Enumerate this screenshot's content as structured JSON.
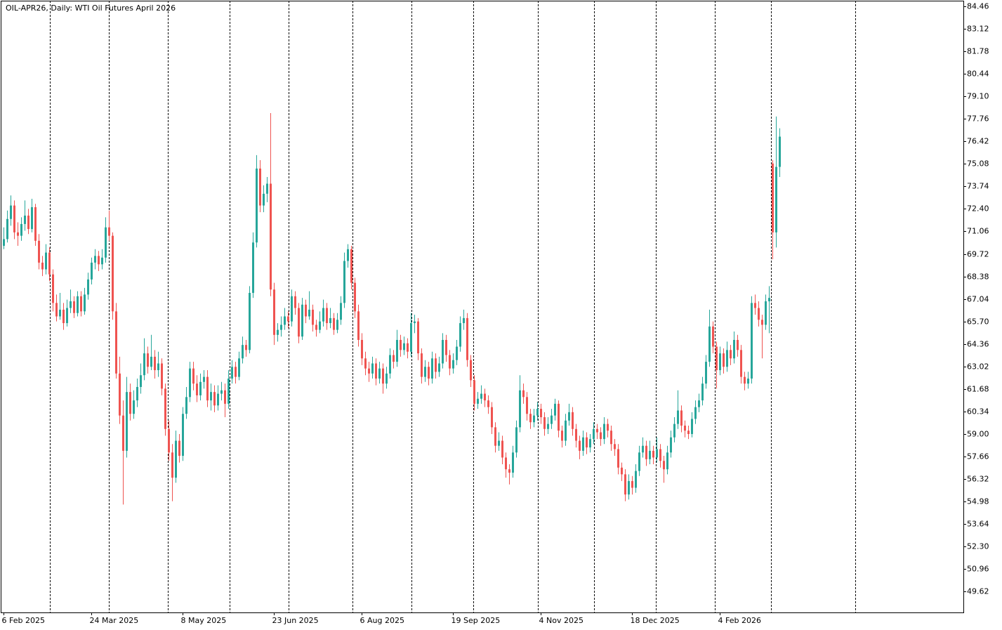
{
  "chart_data": {
    "type": "candlestick",
    "title": "OIL-APR26, Daily:  WTI Oil Futures April 2026",
    "up_color": "#26a69a",
    "down_color": "#ef5350",
    "ylim": [
      48.38,
      84.79
    ],
    "yticks": [
      84.46,
      83.12,
      81.78,
      80.44,
      {
        "value": 79.1,
        "label": "79.10"
      },
      77.76,
      76.42,
      75.08,
      73.74,
      {
        "value": 72.4,
        "label": "72.40"
      },
      71.06,
      69.72,
      68.38,
      67.04,
      {
        "value": 65.7,
        "label": "65.70"
      },
      64.36,
      63.02,
      61.68,
      60.34,
      {
        "value": 59,
        "label": "59.00"
      },
      57.66,
      56.32,
      54.98,
      53.64,
      {
        "value": 52.3,
        "label": "52.30"
      },
      50.96,
      49.62
    ],
    "xlim": [
      -0.8,
      273.4
    ],
    "xticks": [
      {
        "value": 0,
        "label": "6 Feb 2025"
      },
      {
        "value": 25,
        "label": "24 Mar 2025"
      },
      {
        "value": 51,
        "label": "8 May 2025"
      },
      {
        "value": 77,
        "label": "23 Jun 2025"
      },
      {
        "value": 102,
        "label": "6 Aug 2025"
      },
      {
        "value": 128,
        "label": "19 Sep 2025"
      },
      {
        "value": 153,
        "label": "4 Nov 2025"
      },
      {
        "value": 179,
        "label": "18 Dec 2025"
      },
      {
        "value": 204,
        "label": "4 Feb 2026"
      }
    ],
    "xgrid": [
      13.2,
      30,
      46.8,
      64.4,
      81.2,
      99.4,
      116.2,
      133.8,
      152.2,
      168.2,
      185.8,
      202.6,
      218.6,
      242.6
    ],
    "ohlc": [
      [
        70.2,
        71.3,
        70.0,
        70.6
      ],
      [
        70.6,
        72.3,
        70.4,
        71.8
      ],
      [
        71.8,
        73.2,
        71.4,
        72.6
      ],
      [
        72.6,
        72.9,
        70.6,
        71.0
      ],
      [
        71.0,
        71.6,
        70.2,
        70.8
      ],
      [
        70.8,
        71.9,
        70.5,
        71.5
      ],
      [
        71.5,
        72.9,
        71.1,
        72.0
      ],
      [
        72.0,
        72.4,
        70.9,
        71.2
      ],
      [
        71.2,
        73.0,
        71.0,
        72.5
      ],
      [
        72.5,
        72.7,
        70.2,
        70.5
      ],
      [
        70.5,
        70.9,
        68.8,
        69.2
      ],
      [
        69.2,
        69.6,
        68.4,
        68.8
      ],
      [
        68.8,
        70.3,
        68.5,
        69.8
      ],
      [
        69.8,
        70.1,
        68.1,
        68.5
      ],
      [
        68.5,
        68.8,
        66.3,
        66.8
      ],
      [
        66.8,
        67.3,
        65.7,
        66.0
      ],
      [
        66.0,
        67.4,
        65.8,
        66.4
      ],
      [
        66.4,
        66.8,
        65.2,
        65.6
      ],
      [
        65.6,
        67.0,
        65.4,
        66.5
      ],
      [
        66.5,
        67.6,
        66.2,
        66.9
      ],
      [
        66.9,
        67.2,
        65.9,
        66.2
      ],
      [
        66.2,
        67.5,
        66.0,
        67.2
      ],
      [
        67.2,
        67.5,
        66.0,
        66.3
      ],
      [
        66.3,
        67.7,
        66.1,
        67.3
      ],
      [
        67.3,
        68.6,
        67.0,
        68.2
      ],
      [
        68.2,
        69.5,
        67.9,
        69.2
      ],
      [
        69.2,
        70.0,
        68.8,
        69.6
      ],
      [
        69.6,
        69.9,
        68.7,
        69.1
      ],
      [
        69.1,
        70.0,
        68.8,
        69.5
      ],
      [
        69.5,
        71.9,
        69.2,
        71.3
      ],
      [
        71.3,
        72.3,
        70.5,
        70.8
      ],
      [
        70.8,
        71.0,
        65.8,
        66.3
      ],
      [
        66.3,
        66.8,
        62.3,
        62.6
      ],
      [
        62.6,
        63.6,
        59.6,
        60.1
      ],
      [
        60.1,
        61.0,
        54.8,
        58.0
      ],
      [
        58.0,
        62.4,
        57.6,
        61.5
      ],
      [
        61.5,
        62.0,
        59.8,
        60.2
      ],
      [
        60.2,
        61.6,
        59.9,
        61.0
      ],
      [
        61.0,
        62.3,
        60.6,
        61.8
      ],
      [
        61.8,
        63.2,
        61.4,
        62.5
      ],
      [
        62.5,
        64.7,
        62.2,
        63.8
      ],
      [
        63.8,
        64.2,
        62.6,
        63.0
      ],
      [
        63.0,
        64.9,
        62.8,
        63.6
      ],
      [
        63.6,
        64.0,
        62.3,
        62.8
      ],
      [
        62.8,
        63.9,
        62.4,
        63.2
      ],
      [
        63.2,
        63.5,
        61.3,
        61.7
      ],
      [
        61.7,
        62.0,
        58.9,
        59.3
      ],
      [
        59.3,
        59.8,
        57.4,
        57.9
      ],
      [
        57.9,
        58.4,
        55.0,
        56.4
      ],
      [
        56.4,
        59.2,
        56.1,
        58.6
      ],
      [
        58.6,
        59.0,
        57.3,
        57.7
      ],
      [
        57.7,
        60.6,
        57.4,
        60.2
      ],
      [
        60.2,
        61.8,
        59.9,
        61.2
      ],
      [
        61.2,
        63.3,
        60.9,
        62.9
      ],
      [
        62.9,
        63.3,
        61.6,
        62.0
      ],
      [
        62.0,
        62.5,
        60.9,
        61.3
      ],
      [
        61.3,
        62.6,
        61.0,
        62.1
      ],
      [
        62.1,
        62.8,
        61.7,
        62.4
      ],
      [
        62.4,
        62.8,
        60.6,
        61.0
      ],
      [
        61.0,
        62.0,
        60.4,
        61.5
      ],
      [
        61.5,
        61.9,
        60.3,
        60.7
      ],
      [
        60.7,
        61.9,
        60.4,
        61.4
      ],
      [
        61.4,
        62.1,
        61.0,
        61.6
      ],
      [
        61.6,
        62.0,
        60.0,
        60.8
      ],
      [
        60.8,
        62.8,
        60.5,
        62.3
      ],
      [
        62.3,
        63.4,
        62.0,
        63.0
      ],
      [
        63.0,
        63.3,
        62.0,
        62.4
      ],
      [
        62.4,
        63.9,
        62.2,
        63.5
      ],
      [
        63.5,
        64.8,
        63.2,
        64.3
      ],
      [
        64.3,
        64.6,
        63.6,
        64.0
      ],
      [
        64.0,
        67.8,
        63.8,
        67.4
      ],
      [
        67.4,
        71.0,
        67.1,
        70.4
      ],
      [
        70.4,
        75.6,
        70.1,
        74.8
      ],
      [
        74.8,
        75.3,
        72.2,
        72.6
      ],
      [
        72.6,
        73.8,
        72.2,
        73.3
      ],
      [
        73.3,
        74.3,
        72.8,
        73.9
      ],
      [
        73.9,
        78.1,
        67.2,
        67.6
      ],
      [
        67.6,
        68.0,
        64.3,
        64.9
      ],
      [
        64.9,
        65.6,
        64.5,
        65.2
      ],
      [
        65.2,
        66.0,
        64.8,
        65.5
      ],
      [
        65.5,
        66.5,
        65.2,
        66.0
      ],
      [
        66.0,
        66.3,
        65.3,
        65.7
      ],
      [
        65.7,
        67.6,
        65.4,
        67.2
      ],
      [
        67.2,
        67.5,
        66.1,
        66.5
      ],
      [
        66.5,
        66.8,
        64.4,
        64.8
      ],
      [
        64.8,
        67.1,
        64.6,
        66.7
      ],
      [
        66.7,
        67.0,
        65.6,
        66.0
      ],
      [
        66.0,
        67.5,
        65.8,
        66.4
      ],
      [
        66.4,
        66.7,
        65.1,
        65.5
      ],
      [
        65.5,
        65.8,
        64.8,
        65.2
      ],
      [
        65.2,
        66.3,
        65.0,
        65.7
      ],
      [
        65.7,
        67.0,
        65.4,
        66.5
      ],
      [
        66.5,
        66.8,
        65.2,
        65.6
      ],
      [
        65.6,
        66.5,
        65.3,
        65.9
      ],
      [
        65.9,
        66.2,
        64.9,
        65.2
      ],
      [
        65.2,
        66.2,
        65.0,
        65.8
      ],
      [
        65.8,
        67.2,
        65.5,
        66.8
      ],
      [
        66.8,
        69.8,
        66.5,
        69.3
      ],
      [
        69.3,
        70.3,
        68.9,
        70.0
      ],
      [
        70.0,
        70.2,
        67.6,
        68.0
      ],
      [
        68.0,
        68.3,
        65.9,
        66.3
      ],
      [
        66.3,
        66.7,
        64.2,
        64.6
      ],
      [
        64.6,
        65.0,
        63.1,
        63.5
      ],
      [
        63.5,
        63.9,
        62.5,
        62.9
      ],
      [
        62.9,
        63.3,
        62.1,
        62.6
      ],
      [
        62.6,
        63.6,
        62.3,
        63.2
      ],
      [
        63.2,
        63.5,
        61.9,
        62.3
      ],
      [
        62.3,
        63.3,
        62.0,
        62.9
      ],
      [
        62.9,
        63.2,
        61.4,
        62.0
      ],
      [
        62.0,
        63.0,
        61.7,
        62.6
      ],
      [
        62.6,
        64.1,
        62.3,
        63.7
      ],
      [
        63.7,
        64.0,
        62.9,
        63.3
      ],
      [
        63.3,
        65.2,
        63.0,
        64.6
      ],
      [
        64.6,
        64.9,
        63.6,
        64.0
      ],
      [
        64.0,
        64.8,
        63.7,
        64.4
      ],
      [
        64.4,
        64.7,
        63.5,
        63.9
      ],
      [
        63.9,
        66.2,
        63.6,
        65.6
      ],
      [
        65.6,
        66.1,
        65.0,
        65.7
      ],
      [
        65.7,
        65.9,
        63.4,
        63.8
      ],
      [
        63.8,
        64.1,
        62.0,
        62.4
      ],
      [
        62.4,
        63.4,
        62.1,
        63.0
      ],
      [
        63.0,
        63.3,
        61.9,
        62.3
      ],
      [
        62.3,
        63.9,
        62.0,
        63.5
      ],
      [
        63.5,
        63.8,
        62.3,
        62.7
      ],
      [
        62.7,
        63.6,
        62.4,
        63.2
      ],
      [
        63.2,
        65.0,
        62.9,
        64.6
      ],
      [
        64.6,
        64.9,
        63.3,
        63.7
      ],
      [
        63.7,
        64.0,
        62.5,
        62.9
      ],
      [
        62.9,
        63.8,
        62.6,
        63.4
      ],
      [
        63.4,
        64.6,
        63.1,
        64.2
      ],
      [
        64.2,
        66.0,
        63.9,
        65.6
      ],
      [
        65.6,
        66.4,
        65.2,
        65.9
      ],
      [
        65.9,
        66.2,
        63.0,
        63.4
      ],
      [
        63.4,
        63.7,
        61.8,
        62.2
      ],
      [
        62.2,
        62.5,
        60.4,
        60.8
      ],
      [
        60.8,
        61.5,
        60.5,
        61.1
      ],
      [
        61.1,
        61.9,
        60.8,
        61.4
      ],
      [
        61.4,
        61.7,
        60.6,
        61.0
      ],
      [
        61.0,
        61.3,
        60.2,
        60.6
      ],
      [
        60.6,
        60.9,
        59.0,
        59.4
      ],
      [
        59.4,
        59.7,
        57.9,
        58.3
      ],
      [
        58.3,
        59.1,
        58.0,
        58.6
      ],
      [
        58.6,
        58.9,
        57.2,
        57.6
      ],
      [
        57.6,
        57.9,
        56.4,
        56.9
      ],
      [
        56.9,
        57.2,
        56.0,
        56.7
      ],
      [
        56.7,
        58.3,
        56.4,
        57.9
      ],
      [
        57.9,
        59.8,
        57.6,
        59.4
      ],
      [
        59.4,
        62.5,
        59.1,
        61.6
      ],
      [
        61.6,
        62.0,
        60.8,
        61.2
      ],
      [
        61.2,
        61.5,
        59.8,
        60.2
      ],
      [
        60.2,
        60.5,
        59.3,
        59.7
      ],
      [
        59.7,
        60.5,
        59.4,
        60.1
      ],
      [
        60.1,
        60.9,
        59.8,
        60.5
      ],
      [
        60.5,
        60.8,
        59.6,
        60.0
      ],
      [
        60.0,
        60.3,
        58.9,
        59.3
      ],
      [
        59.3,
        60.0,
        59.0,
        59.6
      ],
      [
        59.6,
        60.5,
        59.3,
        60.1
      ],
      [
        60.1,
        61.1,
        59.8,
        60.8
      ],
      [
        60.8,
        61.0,
        58.8,
        59.2
      ],
      [
        59.2,
        59.5,
        58.2,
        58.6
      ],
      [
        58.6,
        60.2,
        58.3,
        59.8
      ],
      [
        59.8,
        60.8,
        59.5,
        60.3
      ],
      [
        60.3,
        60.6,
        58.9,
        59.3
      ],
      [
        59.3,
        59.6,
        58.2,
        58.6
      ],
      [
        58.6,
        58.9,
        57.5,
        58.0
      ],
      [
        58.0,
        59.2,
        57.7,
        58.8
      ],
      [
        58.8,
        59.1,
        57.8,
        58.2
      ],
      [
        58.2,
        59.0,
        57.9,
        58.7
      ],
      [
        58.7,
        59.7,
        58.4,
        59.3
      ],
      [
        59.3,
        59.6,
        58.7,
        59.1
      ],
      [
        59.1,
        59.4,
        58.3,
        58.7
      ],
      [
        58.7,
        60.0,
        58.4,
        59.6
      ],
      [
        59.6,
        59.9,
        58.8,
        59.2
      ],
      [
        59.2,
        59.5,
        58.0,
        58.4
      ],
      [
        58.4,
        58.7,
        57.7,
        58.1
      ],
      [
        58.1,
        58.4,
        56.6,
        57.0
      ],
      [
        57.0,
        57.3,
        56.2,
        56.6
      ],
      [
        56.6,
        56.9,
        55.0,
        55.4
      ],
      [
        55.4,
        56.6,
        55.1,
        56.2
      ],
      [
        56.2,
        56.5,
        55.4,
        55.8
      ],
      [
        55.8,
        57.2,
        55.5,
        56.8
      ],
      [
        56.8,
        58.3,
        56.5,
        57.9
      ],
      [
        57.9,
        58.8,
        57.6,
        58.3
      ],
      [
        58.3,
        58.6,
        57.1,
        57.5
      ],
      [
        57.5,
        58.6,
        57.2,
        58.0
      ],
      [
        58.0,
        58.3,
        57.2,
        57.6
      ],
      [
        57.6,
        58.8,
        57.3,
        58.1
      ],
      [
        58.1,
        58.4,
        57.0,
        57.4
      ],
      [
        57.4,
        57.7,
        56.1,
        56.9
      ],
      [
        56.9,
        58.3,
        56.6,
        57.9
      ],
      [
        57.9,
        59.2,
        57.6,
        58.8
      ],
      [
        58.8,
        60.0,
        58.5,
        59.6
      ],
      [
        59.6,
        61.6,
        59.3,
        60.4
      ],
      [
        60.4,
        60.7,
        59.1,
        59.5
      ],
      [
        59.5,
        59.8,
        58.8,
        59.2
      ],
      [
        59.2,
        59.5,
        58.7,
        59.0
      ],
      [
        59.0,
        60.3,
        58.8,
        59.9
      ],
      [
        59.9,
        61.0,
        59.6,
        60.6
      ],
      [
        60.6,
        61.4,
        60.3,
        61.0
      ],
      [
        61.0,
        62.4,
        60.7,
        62.0
      ],
      [
        62.0,
        63.7,
        61.7,
        63.3
      ],
      [
        63.3,
        66.4,
        63.0,
        65.4
      ],
      [
        65.4,
        65.7,
        63.8,
        64.2
      ],
      [
        64.2,
        64.5,
        61.7,
        62.8
      ],
      [
        62.8,
        64.2,
        62.5,
        63.8
      ],
      [
        63.8,
        64.1,
        62.6,
        63.0
      ],
      [
        63.0,
        64.5,
        62.7,
        64.0
      ],
      [
        64.0,
        64.3,
        63.1,
        63.5
      ],
      [
        63.5,
        65.1,
        63.2,
        64.6
      ],
      [
        64.6,
        64.9,
        63.6,
        64.0
      ],
      [
        64.0,
        64.3,
        62.0,
        62.4
      ],
      [
        62.4,
        62.7,
        61.6,
        62.0
      ],
      [
        62.0,
        62.7,
        61.7,
        62.3
      ],
      [
        62.3,
        67.2,
        62.0,
        66.8
      ],
      [
        66.8,
        67.3,
        66.1,
        66.5
      ],
      [
        66.5,
        66.9,
        65.4,
        65.8
      ],
      [
        65.8,
        66.1,
        63.5,
        65.5
      ],
      [
        65.5,
        67.3,
        65.2,
        66.9
      ],
      [
        66.9,
        67.8,
        65.0,
        67.1
      ],
      [
        75.1,
        75.3,
        69.4,
        71.0
      ],
      [
        71.0,
        77.9,
        70.1,
        74.9
      ],
      [
        74.9,
        77.2,
        74.3,
        76.7
      ]
    ]
  }
}
